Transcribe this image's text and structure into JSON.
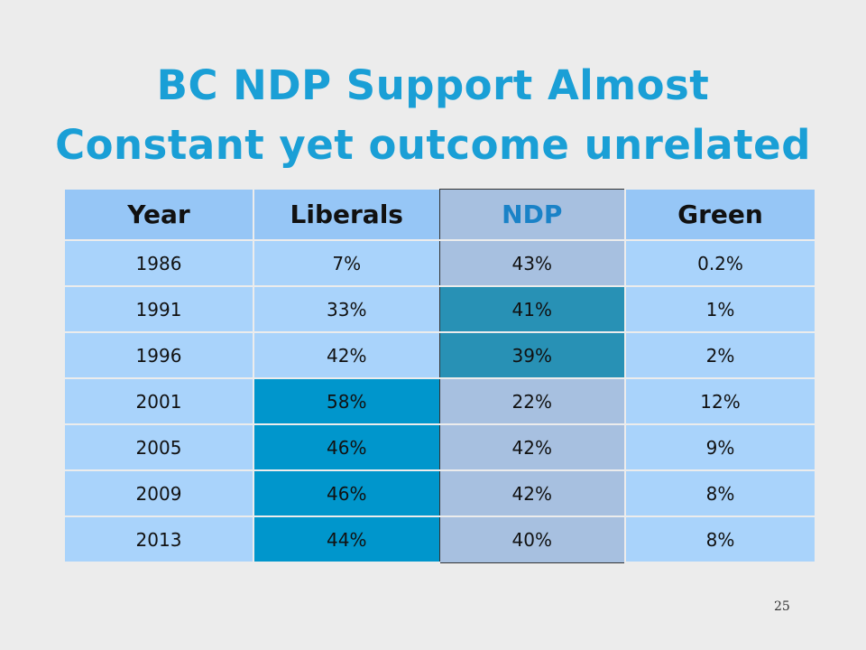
{
  "slide": {
    "title_line1": "BC NDP Support Almost",
    "title_line2": "Constant yet outcome unrelated",
    "page_number": "25"
  },
  "table": {
    "headers": [
      "Year",
      "Liberals",
      "NDP",
      "Green"
    ],
    "rows": [
      [
        "1986",
        "7%",
        "43%",
        "0.2%"
      ],
      [
        "1991",
        "33%",
        "41%",
        "1%"
      ],
      [
        "1996",
        "42%",
        "39%",
        "2%"
      ],
      [
        "2001",
        "58%",
        "22%",
        "12%"
      ],
      [
        "2005",
        "46%",
        "42%",
        "9%"
      ],
      [
        "2009",
        "46%",
        "42%",
        "8%"
      ],
      [
        "2013",
        "44%",
        "40%",
        "8%"
      ]
    ]
  },
  "colors": {
    "title": "#1a9fd6",
    "header_bg": "#96c6f6",
    "cell_bg": "#a9d3fb",
    "ndp_column_bg": "#a7c0e0",
    "ndp_highlight": "#2891b5",
    "liberal_highlight": "#0096cc",
    "ndp_header_text": "#1a82c7"
  }
}
